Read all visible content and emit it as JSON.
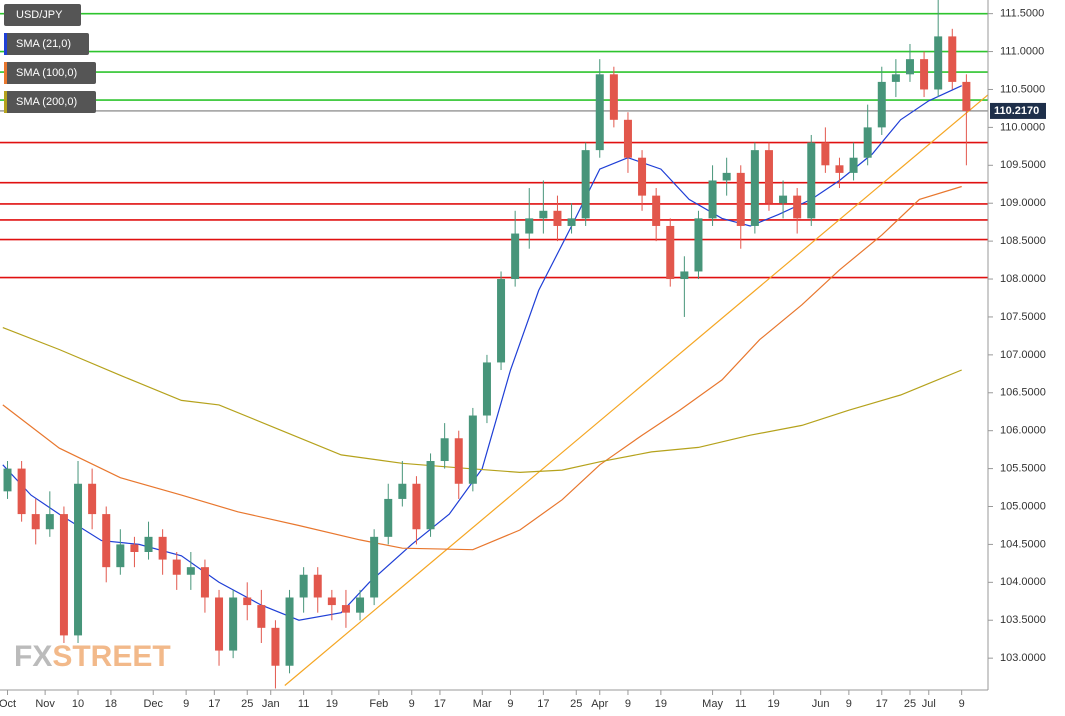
{
  "chart_data": {
    "type": "candlestick",
    "title": "USD/JPY",
    "up_color": "#47957a",
    "down_color": "#e2574c",
    "xlim": [
      -0.6,
      209.6
    ],
    "ylim": [
      102.58,
      111.68
    ],
    "yticks": [
      {
        "value": 103.0,
        "label": "103.0000"
      },
      {
        "value": 103.5,
        "label": "103.5000"
      },
      {
        "value": 104.0,
        "label": "104.0000"
      },
      {
        "value": 104.5,
        "label": "104.5000"
      },
      {
        "value": 105.0,
        "label": "105.0000"
      },
      {
        "value": 105.5,
        "label": "105.5000"
      },
      {
        "value": 106.0,
        "label": "106.0000"
      },
      {
        "value": 106.5,
        "label": "106.5000"
      },
      {
        "value": 107.0,
        "label": "107.0000"
      },
      {
        "value": 107.5,
        "label": "107.5000"
      },
      {
        "value": 108.0,
        "label": "108.0000"
      },
      {
        "value": 108.5,
        "label": "108.5000"
      },
      {
        "value": 109.0,
        "label": "109.0000"
      },
      {
        "value": 109.5,
        "label": "109.5000"
      },
      {
        "value": 110.0,
        "label": "110.0000"
      },
      {
        "value": 110.5,
        "label": "110.5000"
      },
      {
        "value": 111.0,
        "label": "111.0000"
      },
      {
        "value": 111.5,
        "label": "111.5000"
      }
    ],
    "xticks": [
      {
        "value": 1,
        "label": "Oct"
      },
      {
        "value": 9,
        "label": "Nov"
      },
      {
        "value": 16,
        "label": "10"
      },
      {
        "value": 23,
        "label": "18"
      },
      {
        "value": 32,
        "label": "Dec"
      },
      {
        "value": 39,
        "label": "9"
      },
      {
        "value": 45,
        "label": "17"
      },
      {
        "value": 52,
        "label": "25"
      },
      {
        "value": 57,
        "label": "Jan"
      },
      {
        "value": 64,
        "label": "11"
      },
      {
        "value": 70,
        "label": "19"
      },
      {
        "value": 80,
        "label": "Feb"
      },
      {
        "value": 87,
        "label": "9"
      },
      {
        "value": 93,
        "label": "17"
      },
      {
        "value": 102,
        "label": "Mar"
      },
      {
        "value": 108,
        "label": "9"
      },
      {
        "value": 115,
        "label": "17"
      },
      {
        "value": 122,
        "label": "25"
      },
      {
        "value": 127,
        "label": "Apr"
      },
      {
        "value": 133,
        "label": "9"
      },
      {
        "value": 140,
        "label": "19"
      },
      {
        "value": 151,
        "label": "May"
      },
      {
        "value": 157,
        "label": "11"
      },
      {
        "value": 164,
        "label": "19"
      },
      {
        "value": 174,
        "label": "Jun"
      },
      {
        "value": 180,
        "label": "9"
      },
      {
        "value": 187,
        "label": "17"
      },
      {
        "value": 193,
        "label": "25"
      },
      {
        "value": 197,
        "label": "Jul"
      },
      {
        "value": 204,
        "label": "9"
      }
    ],
    "x": [
      1,
      4,
      7,
      10,
      13,
      16,
      19,
      22,
      25,
      28,
      31,
      34,
      37,
      40,
      43,
      46,
      49,
      52,
      55,
      58,
      61,
      64,
      67,
      70,
      73,
      76,
      79,
      82,
      85,
      88,
      91,
      94,
      97,
      100,
      103,
      106,
      109,
      112,
      115,
      118,
      121,
      124,
      127,
      130,
      133,
      136,
      139,
      142,
      145,
      148,
      151,
      154,
      157,
      160,
      163,
      166,
      169,
      172,
      175,
      178,
      181,
      184,
      187,
      190,
      193,
      196,
      199,
      202,
      205
    ],
    "open": [
      105.2,
      105.5,
      104.9,
      104.7,
      104.9,
      103.3,
      105.3,
      104.9,
      104.2,
      104.5,
      104.4,
      104.6,
      104.3,
      104.1,
      104.2,
      103.8,
      103.1,
      103.8,
      103.7,
      103.4,
      102.9,
      103.8,
      104.1,
      103.8,
      103.7,
      103.6,
      103.8,
      104.6,
      105.1,
      105.3,
      104.7,
      105.6,
      105.9,
      105.3,
      106.2,
      106.9,
      108.0,
      108.6,
      108.8,
      108.9,
      108.7,
      108.8,
      109.7,
      110.7,
      110.1,
      109.6,
      109.1,
      108.7,
      108.0,
      108.1,
      108.8,
      109.3,
      109.4,
      108.7,
      109.7,
      109.0,
      109.1,
      108.8,
      109.8,
      109.5,
      109.4,
      109.6,
      110.0,
      110.6,
      110.7,
      110.9,
      110.5,
      111.2,
      110.6
    ],
    "high": [
      105.6,
      105.6,
      105.1,
      105.2,
      105.0,
      105.6,
      105.5,
      105.0,
      104.7,
      104.6,
      104.8,
      104.7,
      104.4,
      104.4,
      104.3,
      103.9,
      103.9,
      104.0,
      103.9,
      103.5,
      103.9,
      104.2,
      104.2,
      103.9,
      103.9,
      103.9,
      104.7,
      105.3,
      105.6,
      105.4,
      105.7,
      106.1,
      106.0,
      106.3,
      107.0,
      108.1,
      108.9,
      109.2,
      109.3,
      109.1,
      109.0,
      109.8,
      110.9,
      110.8,
      110.2,
      109.7,
      109.2,
      108.8,
      108.3,
      108.9,
      109.5,
      109.6,
      109.5,
      109.8,
      109.8,
      109.3,
      109.2,
      109.9,
      110.0,
      109.6,
      109.8,
      110.3,
      110.8,
      110.9,
      111.1,
      111.0,
      111.7,
      111.3,
      110.7
    ],
    "low": [
      105.1,
      104.8,
      104.5,
      104.6,
      103.2,
      103.2,
      104.7,
      104.0,
      104.1,
      104.2,
      104.3,
      104.1,
      103.9,
      103.9,
      103.6,
      102.9,
      103.0,
      103.5,
      103.2,
      102.6,
      102.8,
      103.6,
      103.6,
      103.5,
      103.4,
      103.5,
      103.7,
      104.5,
      105.0,
      104.5,
      104.6,
      105.5,
      105.1,
      105.2,
      106.1,
      106.8,
      107.9,
      108.4,
      108.6,
      108.5,
      108.6,
      108.7,
      109.6,
      110.0,
      109.4,
      108.9,
      108.5,
      107.9,
      107.5,
      108.0,
      108.7,
      109.1,
      108.4,
      108.6,
      108.9,
      108.8,
      108.6,
      108.7,
      109.4,
      109.2,
      109.3,
      109.5,
      109.9,
      110.4,
      110.6,
      110.4,
      110.4,
      110.5,
      109.5
    ],
    "close": [
      105.5,
      104.9,
      104.7,
      104.9,
      103.3,
      105.3,
      104.9,
      104.2,
      104.5,
      104.4,
      104.6,
      104.3,
      104.1,
      104.2,
      103.8,
      103.1,
      103.8,
      103.7,
      103.4,
      102.9,
      103.8,
      104.1,
      103.8,
      103.7,
      103.6,
      103.8,
      104.6,
      105.1,
      105.3,
      104.7,
      105.6,
      105.9,
      105.3,
      106.2,
      106.9,
      108.0,
      108.6,
      108.8,
      108.9,
      108.7,
      108.8,
      109.7,
      110.7,
      110.1,
      109.6,
      109.1,
      108.7,
      108.0,
      108.1,
      108.8,
      109.3,
      109.4,
      108.7,
      109.7,
      109.0,
      109.1,
      108.8,
      109.8,
      109.5,
      109.4,
      109.6,
      110.0,
      110.6,
      110.7,
      110.9,
      110.5,
      111.2,
      110.6,
      110.217
    ],
    "series": [
      {
        "name": "SMA (21,0)",
        "color": "#1f3fd6",
        "x": [
          0,
          6,
          12,
          21,
          29,
          38,
          46,
          55,
          63,
          72,
          78,
          87,
          95,
          102,
          108,
          114,
          121,
          127,
          133,
          140,
          146,
          153,
          159,
          165,
          172,
          178,
          185,
          191,
          197,
          204
        ],
        "values": [
          105.55,
          105.15,
          104.9,
          104.55,
          104.5,
          104.35,
          104.0,
          103.7,
          103.5,
          103.6,
          104.0,
          104.5,
          104.9,
          105.5,
          106.8,
          107.85,
          108.7,
          109.45,
          109.6,
          109.45,
          109.05,
          108.8,
          108.7,
          108.85,
          109.05,
          109.3,
          109.65,
          110.1,
          110.35,
          110.55
        ]
      },
      {
        "name": "SMA (100,0)",
        "color": "#e8772e",
        "x": [
          0,
          12,
          25,
          38,
          50,
          63,
          76,
          85,
          100,
          110,
          119,
          127,
          136,
          144,
          153,
          161,
          170,
          178,
          187,
          195,
          204
        ],
        "values": [
          106.34,
          105.77,
          105.38,
          105.15,
          104.93,
          104.75,
          104.56,
          104.45,
          104.43,
          104.69,
          105.09,
          105.55,
          105.94,
          106.27,
          106.67,
          107.2,
          107.66,
          108.12,
          108.58,
          109.05,
          109.22
        ]
      },
      {
        "name": "SMA (200,0)",
        "color": "#b5a21c",
        "x": [
          0,
          12,
          25,
          38,
          46,
          59,
          72,
          85,
          97,
          110,
          119,
          127,
          138,
          148,
          159,
          170,
          180,
          191,
          204
        ],
        "values": [
          107.36,
          107.07,
          106.73,
          106.4,
          106.34,
          106.01,
          105.68,
          105.57,
          105.51,
          105.45,
          105.48,
          105.59,
          105.72,
          105.78,
          105.94,
          106.07,
          106.27,
          106.47,
          106.8
        ]
      }
    ],
    "trendline": {
      "color": "#f5a623",
      "x": [
        60,
        209.6
      ],
      "values": [
        102.64,
        110.43
      ]
    },
    "levels": [
      {
        "value": 111.5,
        "color": "#2ec42e"
      },
      {
        "value": 111.0,
        "color": "#2ec42e"
      },
      {
        "value": 110.73,
        "color": "#2ec42e"
      },
      {
        "value": 110.36,
        "color": "#2ec42e"
      },
      {
        "value": 109.8,
        "color": "#e01010"
      },
      {
        "value": 109.27,
        "color": "#e01010"
      },
      {
        "value": 108.99,
        "color": "#e01010"
      },
      {
        "value": 108.78,
        "color": "#e01010"
      },
      {
        "value": 108.52,
        "color": "#e01010"
      },
      {
        "value": 108.02,
        "color": "#e01010"
      }
    ],
    "last_price": {
      "value": 110.217,
      "label": "110.2170"
    },
    "watermark": [
      "FX",
      "STREET"
    ]
  }
}
